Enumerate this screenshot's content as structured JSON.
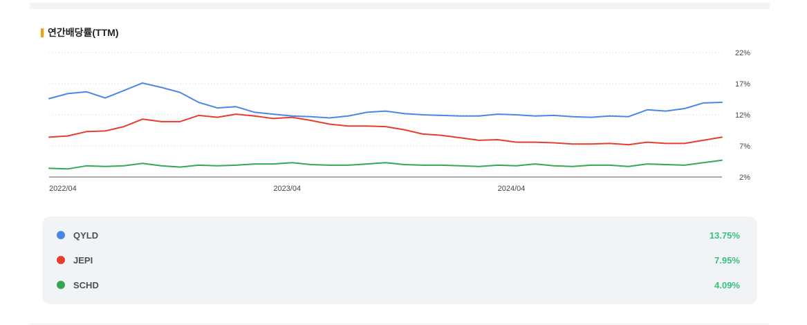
{
  "section": {
    "title": "연간배당률(TTM)",
    "accent_color": "#f59f00"
  },
  "chart_data": {
    "type": "line",
    "title": "연간배당률(TTM)",
    "y_axis": {
      "ticks": [
        2,
        7,
        12,
        17,
        22
      ],
      "tick_labels": [
        "2%",
        "7%",
        "12%",
        "17%",
        "22%"
      ],
      "range": [
        2,
        22
      ],
      "position": "right"
    },
    "x_axis": {
      "tick_labels": [
        "2022/04",
        "2023/04",
        "2024/04"
      ],
      "tick_indices": [
        0,
        12,
        24
      ],
      "num_points": 37
    },
    "grid": "horizontal-dotted",
    "series": [
      {
        "name": "QYLD",
        "color": "#4a86e8",
        "values": [
          14.6,
          15.4,
          15.7,
          14.7,
          15.9,
          17.1,
          16.4,
          15.6,
          14.0,
          13.1,
          13.3,
          12.4,
          12.1,
          11.8,
          11.7,
          11.5,
          11.8,
          12.4,
          12.6,
          12.2,
          12.0,
          11.9,
          11.8,
          11.8,
          12.1,
          12.0,
          11.8,
          11.9,
          11.7,
          11.6,
          11.8,
          11.7,
          12.8,
          12.6,
          13.0,
          13.9,
          14.0
        ]
      },
      {
        "name": "JEPI",
        "color": "#e53e2f",
        "values": [
          8.4,
          8.6,
          9.3,
          9.4,
          10.1,
          11.3,
          10.9,
          10.9,
          11.9,
          11.6,
          12.1,
          11.8,
          11.4,
          11.6,
          11.1,
          10.5,
          10.2,
          10.2,
          10.1,
          9.6,
          8.9,
          8.7,
          8.3,
          7.9,
          8.0,
          7.6,
          7.6,
          7.5,
          7.3,
          7.3,
          7.4,
          7.2,
          7.6,
          7.4,
          7.4,
          7.9,
          8.4
        ]
      },
      {
        "name": "SCHD",
        "color": "#34a853",
        "values": [
          3.4,
          3.3,
          3.8,
          3.7,
          3.8,
          4.2,
          3.8,
          3.6,
          3.9,
          3.8,
          3.9,
          4.1,
          4.1,
          4.3,
          4.0,
          3.9,
          3.9,
          4.1,
          4.3,
          4.0,
          3.9,
          3.9,
          3.8,
          3.7,
          3.9,
          3.8,
          4.1,
          3.8,
          3.7,
          3.9,
          3.9,
          3.7,
          4.1,
          4.0,
          3.9,
          4.3,
          4.7
        ]
      }
    ]
  },
  "legend": [
    {
      "name": "QYLD",
      "color": "#4a86e8",
      "value": "13.75%"
    },
    {
      "name": "JEPI",
      "color": "#e53e2f",
      "value": "7.95%"
    },
    {
      "name": "SCHD",
      "color": "#34a853",
      "value": "4.09%"
    }
  ],
  "colors": {
    "positive_value": "#38c07f",
    "card_background": "#f1f4f7"
  }
}
